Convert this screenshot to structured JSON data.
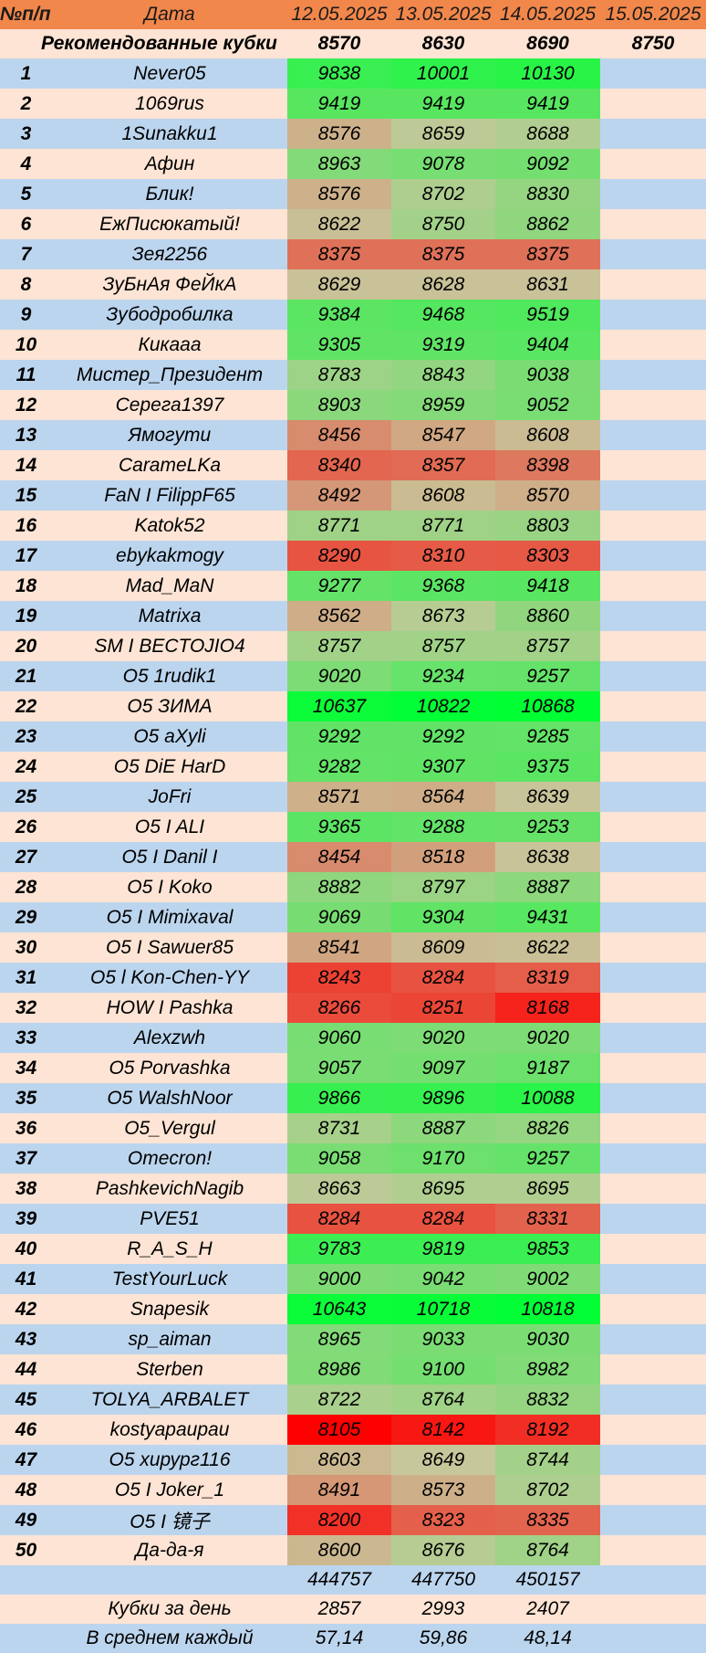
{
  "header": {
    "num_label": "№п/п",
    "date_label": "Дата",
    "dates": [
      "12.05.2025",
      "13.05.2025",
      "14.05.2025",
      "15.05.2025"
    ]
  },
  "recommended": {
    "label": "Рекомендованные кубки",
    "values": [
      "8570",
      "8630",
      "8690",
      "8750"
    ]
  },
  "players": [
    {
      "n": "1",
      "name": "Never05",
      "v": [
        "9838",
        "10001",
        "10130"
      ]
    },
    {
      "n": "2",
      "name": "1069rus",
      "v": [
        "9419",
        "9419",
        "9419"
      ]
    },
    {
      "n": "3",
      "name": "1Sunakku1",
      "v": [
        "8576",
        "8659",
        "8688"
      ]
    },
    {
      "n": "4",
      "name": "Афин",
      "v": [
        "8963",
        "9078",
        "9092"
      ]
    },
    {
      "n": "5",
      "name": "Блик!",
      "v": [
        "8576",
        "8702",
        "8830"
      ]
    },
    {
      "n": "6",
      "name": "ЕжПисюкатый!",
      "v": [
        "8622",
        "8750",
        "8862"
      ]
    },
    {
      "n": "7",
      "name": "Зея2256",
      "v": [
        "8375",
        "8375",
        "8375"
      ]
    },
    {
      "n": "8",
      "name": "ЗуБнАя ФеЙкА",
      "v": [
        "8629",
        "8628",
        "8631"
      ]
    },
    {
      "n": "9",
      "name": "Зубодробилка",
      "v": [
        "9384",
        "9468",
        "9519"
      ]
    },
    {
      "n": "10",
      "name": "Кикааа",
      "v": [
        "9305",
        "9319",
        "9404"
      ]
    },
    {
      "n": "11",
      "name": "Мистер_Президент",
      "v": [
        "8783",
        "8843",
        "9038"
      ]
    },
    {
      "n": "12",
      "name": "Серега1397",
      "v": [
        "8903",
        "8959",
        "9052"
      ]
    },
    {
      "n": "13",
      "name": "Ямогути",
      "v": [
        "8456",
        "8547",
        "8608"
      ]
    },
    {
      "n": "14",
      "name": "CarameLKa",
      "v": [
        "8340",
        "8357",
        "8398"
      ]
    },
    {
      "n": "15",
      "name": "FaN I FilippF65",
      "v": [
        "8492",
        "8608",
        "8570"
      ]
    },
    {
      "n": "16",
      "name": "Katok52",
      "v": [
        "8771",
        "8771",
        "8803"
      ]
    },
    {
      "n": "17",
      "name": "ebykakmogy",
      "v": [
        "8290",
        "8310",
        "8303"
      ]
    },
    {
      "n": "18",
      "name": "Mad_MaN",
      "v": [
        "9277",
        "9368",
        "9418"
      ]
    },
    {
      "n": "19",
      "name": "Matrixa",
      "v": [
        "8562",
        "8673",
        "8860"
      ]
    },
    {
      "n": "20",
      "name": "SM I BECTOJIO4",
      "v": [
        "8757",
        "8757",
        "8757"
      ]
    },
    {
      "n": "21",
      "name": "O5 1rudik1",
      "v": [
        "9020",
        "9234",
        "9257"
      ]
    },
    {
      "n": "22",
      "name": "O5 ЗИМА",
      "v": [
        "10637",
        "10822",
        "10868"
      ]
    },
    {
      "n": "23",
      "name": "O5 aXyli",
      "v": [
        "9292",
        "9292",
        "9285"
      ]
    },
    {
      "n": "24",
      "name": "O5 DiE HarD",
      "v": [
        "9282",
        "9307",
        "9375"
      ]
    },
    {
      "n": "25",
      "name": "JoFri",
      "v": [
        "8571",
        "8564",
        "8639"
      ]
    },
    {
      "n": "26",
      "name": "O5 I ALI",
      "v": [
        "9365",
        "9288",
        "9253"
      ]
    },
    {
      "n": "27",
      "name": "O5 I Danil I",
      "v": [
        "8454",
        "8518",
        "8638"
      ]
    },
    {
      "n": "28",
      "name": "O5 I Koko",
      "v": [
        "8882",
        "8797",
        "8887"
      ]
    },
    {
      "n": "29",
      "name": "O5 I Mimixaval",
      "v": [
        "9069",
        "9304",
        "9431"
      ]
    },
    {
      "n": "30",
      "name": "O5 I Sawuer85",
      "v": [
        "8541",
        "8609",
        "8622"
      ]
    },
    {
      "n": "31",
      "name": "O5 l Kon-Chen-YY",
      "v": [
        "8243",
        "8284",
        "8319"
      ]
    },
    {
      "n": "32",
      "name": "HOW I Pashka",
      "v": [
        "8266",
        "8251",
        "8168"
      ]
    },
    {
      "n": "33",
      "name": "Alexzwh",
      "v": [
        "9060",
        "9020",
        "9020"
      ]
    },
    {
      "n": "34",
      "name": "O5 Porvashka",
      "v": [
        "9057",
        "9097",
        "9187"
      ]
    },
    {
      "n": "35",
      "name": "O5 WalshNoor",
      "v": [
        "9866",
        "9896",
        "10088"
      ]
    },
    {
      "n": "36",
      "name": "O5_Vergul",
      "v": [
        "8731",
        "8887",
        "8826"
      ]
    },
    {
      "n": "37",
      "name": "Omecron!",
      "v": [
        "9058",
        "9170",
        "9257"
      ]
    },
    {
      "n": "38",
      "name": "PashkevichNagib",
      "v": [
        "8663",
        "8695",
        "8695"
      ]
    },
    {
      "n": "39",
      "name": "PVE51",
      "v": [
        "8284",
        "8284",
        "8331"
      ]
    },
    {
      "n": "40",
      "name": "R_A_S_H",
      "v": [
        "9783",
        "9819",
        "9853"
      ]
    },
    {
      "n": "41",
      "name": "TestYourLuck",
      "v": [
        "9000",
        "9042",
        "9002"
      ]
    },
    {
      "n": "42",
      "name": "Snapesik",
      "v": [
        "10643",
        "10718",
        "10818"
      ]
    },
    {
      "n": "43",
      "name": "sp_aiman",
      "v": [
        "8965",
        "9033",
        "9030"
      ]
    },
    {
      "n": "44",
      "name": "Sterben",
      "v": [
        "8986",
        "9100",
        "8982"
      ]
    },
    {
      "n": "45",
      "name": "TOLYA_ARBALET",
      "v": [
        "8722",
        "8764",
        "8832"
      ]
    },
    {
      "n": "46",
      "name": "kostyapaupau",
      "v": [
        "8105",
        "8142",
        "8192"
      ]
    },
    {
      "n": "47",
      "name": "O5 хирург116",
      "v": [
        "8603",
        "8649",
        "8744"
      ]
    },
    {
      "n": "48",
      "name": "O5 I Joker_1",
      "v": [
        "8491",
        "8573",
        "8702"
      ]
    },
    {
      "n": "49",
      "name": "O5 I 镜子",
      "v": [
        "8200",
        "8323",
        "8335"
      ]
    },
    {
      "n": "50",
      "name": "Да-да-я",
      "v": [
        "8600",
        "8676",
        "8764"
      ]
    }
  ],
  "totals": {
    "label": "",
    "values": [
      "444757",
      "447750",
      "450157"
    ]
  },
  "daily": {
    "label": "Кубки за день",
    "values": [
      "2857",
      "2993",
      "2407"
    ]
  },
  "average": {
    "label": "В среднем каждый",
    "values": [
      "57,14",
      "59,86",
      "48,14"
    ]
  },
  "colors": {
    "header_bg": "#f2874b",
    "row_blue": "#bcd5ee",
    "row_peach": "#fde4d4",
    "scale_low": "#ff0000",
    "scale_mid": "#c7c79c",
    "scale_high": "#00ff33"
  }
}
